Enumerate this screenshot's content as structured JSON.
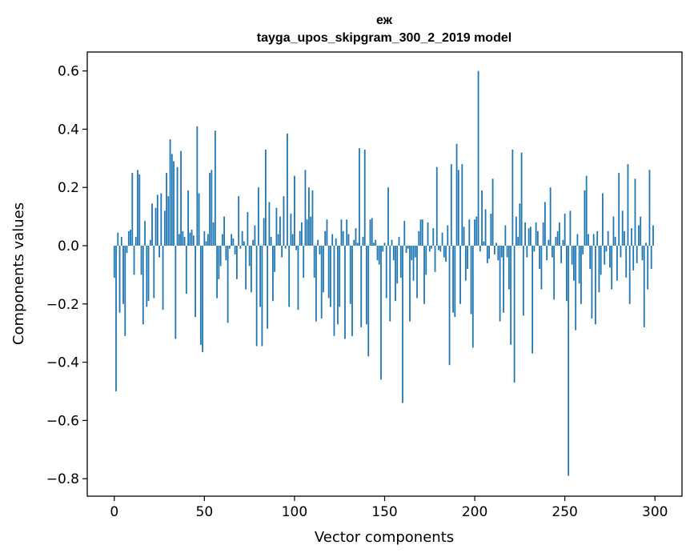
{
  "chart_data": {
    "type": "bar",
    "title_line1": "еж",
    "title_line2": "tayga_upos_skipgram_300_2_2019 model",
    "xlabel": "Vector components",
    "ylabel": "Components values",
    "xlim": [
      -15,
      315
    ],
    "ylim": [
      -0.86,
      0.665
    ],
    "xticks": [
      0,
      50,
      100,
      150,
      200,
      250,
      300
    ],
    "xtick_labels": [
      "0",
      "50",
      "100",
      "150",
      "200",
      "250",
      "300"
    ],
    "yticks": [
      0.6,
      0.4,
      0.2,
      0.0,
      -0.2,
      -0.4,
      -0.6,
      -0.8
    ],
    "ytick_labels": [
      "0.6",
      "0.4",
      "0.2",
      "0.0",
      "−0.2",
      "−0.4",
      "−0.6",
      "−0.8"
    ],
    "bar_color": "#1f77b4",
    "values": [
      -0.11,
      -0.5,
      0.045,
      -0.23,
      0.03,
      -0.2,
      -0.31,
      -0.025,
      0.05,
      0.055,
      0.25,
      -0.1,
      0.03,
      0.26,
      0.245,
      -0.1,
      -0.27,
      0.085,
      -0.21,
      -0.19,
      0.02,
      0.145,
      -0.18,
      0.13,
      0.175,
      -0.04,
      0.18,
      -0.22,
      0.12,
      0.25,
      0.17,
      0.365,
      0.315,
      0.29,
      -0.32,
      0.27,
      0.04,
      0.325,
      0.05,
      0.03,
      -0.165,
      0.19,
      0.045,
      0.055,
      0.035,
      -0.245,
      0.41,
      0.18,
      -0.34,
      -0.365,
      0.05,
      0.015,
      0.04,
      0.25,
      0.26,
      0.08,
      0.395,
      -0.18,
      -0.115,
      -0.07,
      0.04,
      0.1,
      -0.05,
      -0.265,
      -0.01,
      0.04,
      0.025,
      -0.03,
      -0.115,
      0.17,
      -0.01,
      0.05,
      0.015,
      -0.15,
      0.115,
      -0.07,
      -0.16,
      0.02,
      0.07,
      -0.345,
      0.2,
      -0.21,
      -0.345,
      0.095,
      0.33,
      -0.285,
      0.15,
      0.03,
      -0.19,
      -0.09,
      0.13,
      0.04,
      0.1,
      -0.04,
      0.17,
      -0.01,
      0.385,
      -0.21,
      0.11,
      0.04,
      0.24,
      -0.015,
      -0.22,
      0.05,
      0.08,
      -0.11,
      0.26,
      0.09,
      0.2,
      0.1,
      0.19,
      -0.11,
      -0.26,
      0.02,
      -0.03,
      -0.25,
      -0.16,
      0.05,
      0.09,
      -0.18,
      -0.21,
      0.04,
      -0.31,
      0.025,
      -0.27,
      -0.21,
      0.09,
      0.05,
      -0.32,
      0.09,
      0.04,
      -0.2,
      -0.31,
      0.02,
      0.06,
      0.01,
      0.335,
      -0.28,
      0.03,
      0.33,
      -0.27,
      -0.38,
      0.09,
      0.095,
      0.01,
      0.02,
      -0.05,
      -0.065,
      -0.46,
      -0.02,
      0.01,
      -0.18,
      0.2,
      -0.26,
      0.02,
      -0.05,
      -0.19,
      -0.13,
      0.03,
      -0.11,
      -0.54,
      0.085,
      -0.025,
      -0.01,
      -0.26,
      -0.05,
      -0.12,
      -0.04,
      -0.18,
      0.05,
      0.09,
      0.09,
      -0.2,
      -0.1,
      0.08,
      -0.02,
      -0.01,
      0.06,
      -0.09,
      0.27,
      -0.015,
      -0.02,
      0.045,
      -0.04,
      -0.055,
      0.07,
      -0.41,
      0.28,
      -0.23,
      -0.245,
      0.35,
      0.26,
      -0.2,
      0.28,
      0.065,
      -0.12,
      -0.08,
      0.09,
      -0.235,
      -0.35,
      0.09,
      0.1,
      0.6,
      -0.02,
      0.19,
      0.015,
      0.125,
      -0.06,
      -0.045,
      0.11,
      0.23,
      -0.03,
      0.01,
      -0.05,
      -0.26,
      -0.04,
      -0.23,
      0.07,
      -0.04,
      -0.15,
      -0.34,
      0.33,
      -0.47,
      0.1,
      0.03,
      0.145,
      0.32,
      -0.24,
      0.08,
      -0.04,
      0.06,
      0.065,
      -0.37,
      -0.02,
      0.08,
      0.05,
      -0.08,
      -0.15,
      0.08,
      0.15,
      -0.05,
      0.02,
      0.2,
      -0.04,
      -0.185,
      0.03,
      0.05,
      0.08,
      -0.06,
      0.02,
      0.11,
      -0.19,
      -0.79,
      0.12,
      -0.065,
      -0.12,
      -0.29,
      0.04,
      -0.13,
      -0.2,
      -0.03,
      0.19,
      0.24,
      0.04,
      -0.08,
      -0.25,
      0.04,
      -0.27,
      0.05,
      -0.16,
      -0.1,
      0.18,
      -0.065,
      -0.02,
      0.05,
      -0.075,
      -0.15,
      0.1,
      0.03,
      -0.12,
      0.25,
      -0.04,
      0.12,
      0.05,
      -0.11,
      0.28,
      -0.2,
      0.06,
      -0.085,
      0.23,
      -0.06,
      0.07,
      0.1,
      -0.05,
      -0.28,
      0.01,
      -0.15,
      0.26,
      -0.08,
      0.07
    ]
  }
}
